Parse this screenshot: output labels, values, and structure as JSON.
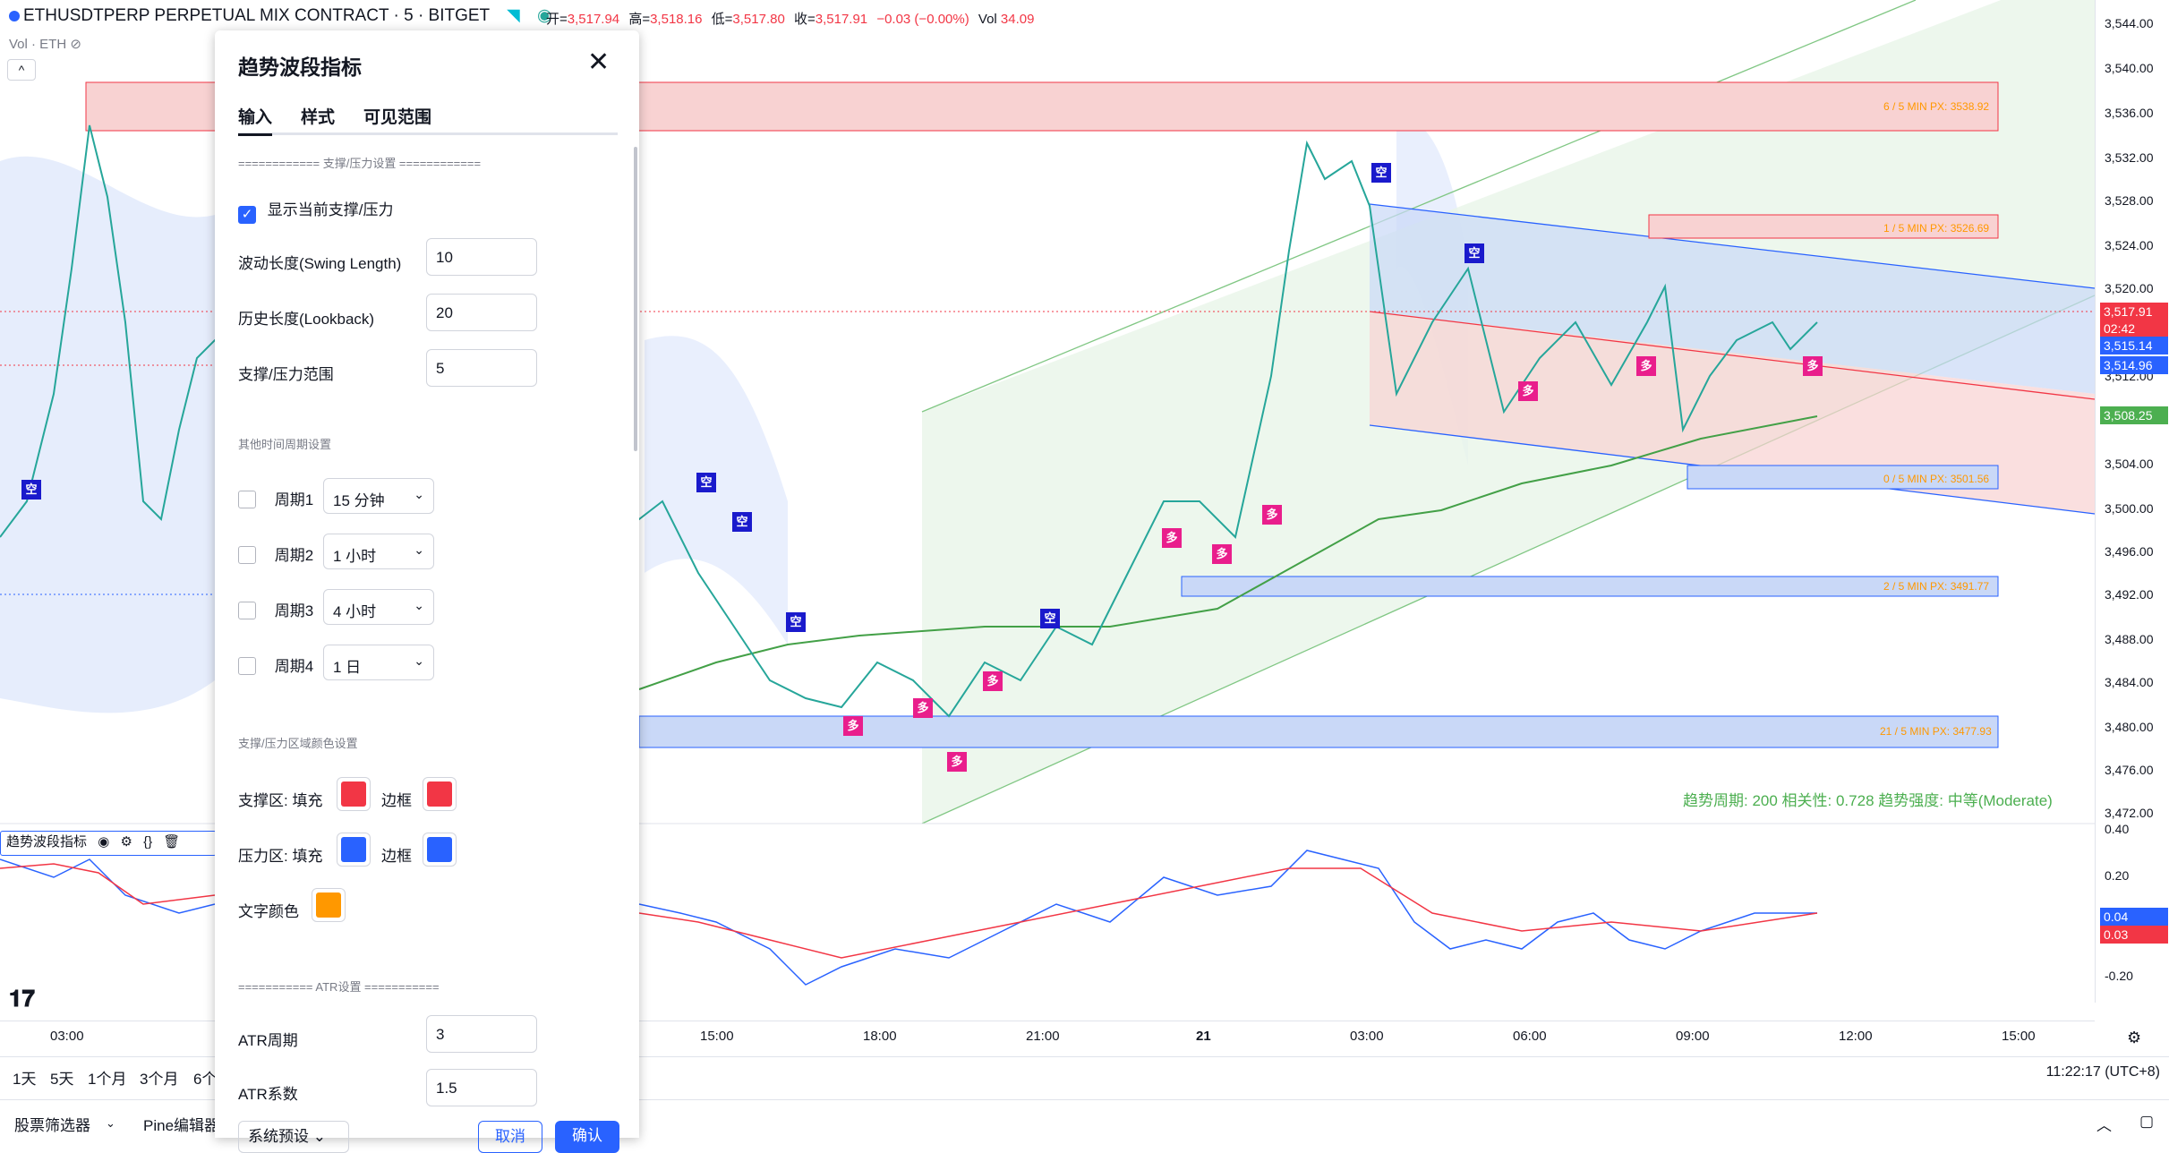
{
  "header": {
    "symbol": "ETHUSDTPERP PERPETUAL MIX CONTRACT · 5 · BITGET",
    "open_label": "开=",
    "open": "3,517.94",
    "high_label": "高=",
    "high": "3,518.16",
    "low_label": "低=",
    "low": "3,517.80",
    "close_label": "收=",
    "close": "3,517.91",
    "change": "−0.03 (−0.00%)",
    "vol_label": "Vol",
    "vol": "34.09",
    "vol_indicator": "Vol · ETH"
  },
  "price_axis": {
    "ticks": [
      "3,544.00",
      "3,540.00",
      "3,536.00",
      "3,532.00",
      "3,528.00",
      "3,524.00",
      "3,520.00",
      "3,512.00",
      "3,504.00",
      "3,500.00",
      "3,496.00",
      "3,492.00",
      "3,488.00",
      "3,484.00",
      "3,480.00",
      "3,476.00",
      "3,472.00"
    ],
    "labels": {
      "last": "3,517.91",
      "countdown": "02:42",
      "blue1": "3,515.14",
      "blue2": "3,514.96",
      "green": "3,508.25"
    },
    "colors": {
      "last": "#f23645",
      "blue": "#2962ff",
      "green": "#4caf50"
    }
  },
  "osc_axis": {
    "ticks": [
      "0.40",
      "0.20",
      "-0.20"
    ],
    "labels": {
      "blue": "0.04",
      "red": "0.03"
    }
  },
  "time_axis": [
    "03:00",
    "15:00",
    "18:00",
    "21:00",
    "21",
    "03:00",
    "06:00",
    "09:00",
    "12:00",
    "15:00"
  ],
  "zones": {
    "z1": "6 / 5 MIN PX: 3538.92",
    "z2": "1 / 5 MIN PX: 3526.69",
    "z3": "0 / 5 MIN PX: 3501.56",
    "z4": "2 / 5 MIN PX: 3491.77",
    "z5": "21 / 5 MIN PX: 3477.93"
  },
  "signals": {
    "short": "空",
    "long": "多"
  },
  "stats": "趋势周期: 200   相关性: 0.728   趋势强度: 中等(Moderate)",
  "pane2_legend": "趋势波段指标",
  "dialog": {
    "title": "趋势波段指标",
    "tabs": [
      "输入",
      "样式",
      "可见范围"
    ],
    "section_sr": "============ 支撑/压力设置 ============",
    "show_sr": "显示当前支撑/压力",
    "swing_label": "波动长度(Swing Length)",
    "swing_value": "10",
    "lookback_label": "历史长度(Lookback)",
    "lookback_value": "20",
    "range_label": "支撑/压力范围",
    "range_value": "5",
    "section_tf": "其他时间周期设置",
    "periods": [
      {
        "label": "周期1",
        "value": "15 分钟"
      },
      {
        "label": "周期2",
        "value": "1 小时"
      },
      {
        "label": "周期3",
        "value": "4 小时"
      },
      {
        "label": "周期4",
        "value": "1 日"
      }
    ],
    "section_color": "支撑/压力区域颜色设置",
    "support_label": "支撑区: 填充",
    "border_label": "边框",
    "resist_label": "压力区: 填充",
    "text_color_label": "文字颜色",
    "colors": {
      "support_fill": "#f23645",
      "support_border": "#f23645",
      "resist_fill": "#2962ff",
      "resist_border": "#2962ff",
      "text": "#ff9800"
    },
    "section_atr": "=========== ATR设置 ===========",
    "atr_period_label": "ATR周期",
    "atr_period_value": "3",
    "atr_mult_label": "ATR系数",
    "atr_mult_value": "1.5",
    "defaults_button": "系统预设",
    "cancel_button": "取消",
    "ok_button": "确认"
  },
  "timeframes": [
    "1天",
    "5天",
    "1个月",
    "3个月",
    "6个"
  ],
  "clock": "11:22:17 (UTC+8)",
  "footer": [
    "股票筛选器",
    "Pine编辑器"
  ]
}
